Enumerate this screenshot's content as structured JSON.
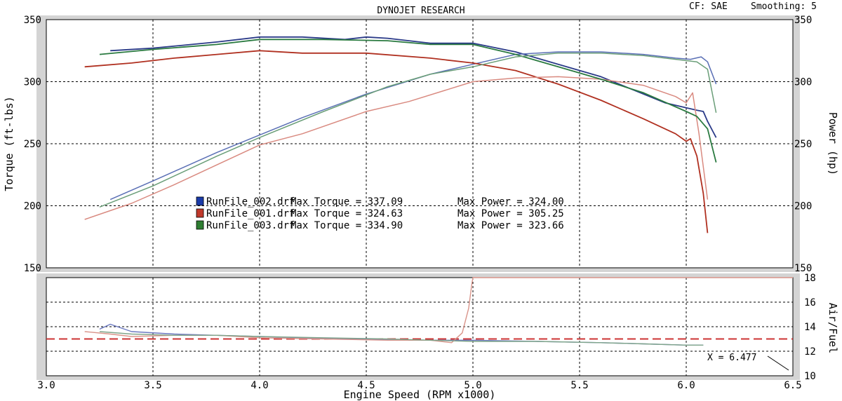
{
  "header": {
    "title": "DYNOJET RESEARCH",
    "cf_label": "CF: SAE",
    "smoothing_label": "Smoothing: 5"
  },
  "colors": {
    "frame_bg": "#d4d4d4",
    "plot_bg": "#ffffff",
    "grid": "#000000",
    "afr_ref": "#cc3333"
  },
  "chart_data": [
    {
      "type": "line",
      "xlabel": "Engine Speed (RPM x1000)",
      "ylabel": "Torque (ft-lbs)",
      "y2label": "Power (hp)",
      "xlim": [
        3.0,
        6.5
      ],
      "ylim": [
        150,
        350
      ],
      "y2lim": [
        150,
        350
      ],
      "xticks": [
        "3.0",
        "3.5",
        "4.0",
        "4.5",
        "5.0",
        "5.5",
        "6.0",
        "6.5"
      ],
      "yticks": [
        "150",
        "200",
        "250",
        "300",
        "350"
      ],
      "y2ticks": [
        "150",
        "200",
        "250",
        "300",
        "350"
      ],
      "grid": true,
      "legend": [
        {
          "run": "RunFile_002.drf",
          "max_torque_label": "Max Torque = 337.09",
          "max_power_label": "Max Power = 324.00",
          "color": "#1a3aa8"
        },
        {
          "run": "RunFile_001.drf",
          "max_torque_label": "Max Torque = 324.63",
          "max_power_label": "Max Power = 305.25",
          "color": "#c0392b"
        },
        {
          "run": "RunFile_003.drf",
          "max_torque_label": "Max Torque = 334.90",
          "max_power_label": "Max Power = 323.66",
          "color": "#2e7d32"
        }
      ],
      "series": [
        {
          "run": "RunFile_002.drf",
          "measure": "torque",
          "color": "#2a3a88",
          "x": [
            3.3,
            3.5,
            3.8,
            4.0,
            4.2,
            4.4,
            4.5,
            4.6,
            4.8,
            5.0,
            5.2,
            5.4,
            5.6,
            5.8,
            5.9,
            6.0,
            6.05,
            6.08,
            6.1,
            6.14
          ],
          "values": [
            325,
            327,
            332,
            336,
            336,
            334,
            336,
            335,
            331,
            331,
            324,
            314,
            304,
            290,
            283,
            279,
            277,
            276,
            268,
            255
          ]
        },
        {
          "run": "RunFile_002.drf",
          "measure": "power",
          "color": "#5a6fb5",
          "x": [
            3.3,
            3.5,
            3.8,
            4.0,
            4.2,
            4.5,
            4.8,
            5.0,
            5.2,
            5.4,
            5.6,
            5.8,
            5.95,
            6.02,
            6.07,
            6.1,
            6.14
          ],
          "values": [
            205,
            220,
            243,
            257,
            271,
            290,
            306,
            314,
            322,
            324,
            324,
            322,
            319,
            318,
            320,
            316,
            298
          ]
        },
        {
          "run": "RunFile_001.drf",
          "measure": "torque",
          "color": "#b03020",
          "x": [
            3.18,
            3.4,
            3.6,
            3.8,
            4.0,
            4.2,
            4.5,
            4.8,
            5.0,
            5.2,
            5.4,
            5.6,
            5.8,
            5.95,
            6.0,
            6.02,
            6.05,
            6.08,
            6.1
          ],
          "values": [
            312,
            315,
            319,
            322,
            325,
            323,
            323,
            319,
            315,
            309,
            298,
            285,
            270,
            258,
            252,
            254,
            240,
            210,
            178
          ]
        },
        {
          "run": "RunFile_001.drf",
          "measure": "power",
          "color": "#d98a80",
          "x": [
            3.18,
            3.4,
            3.6,
            3.8,
            4.0,
            4.2,
            4.5,
            4.7,
            5.0,
            5.2,
            5.4,
            5.6,
            5.8,
            5.95,
            6.0,
            6.03,
            6.06,
            6.1
          ],
          "values": [
            189,
            202,
            217,
            233,
            249,
            258,
            276,
            284,
            300,
            303,
            304,
            302,
            297,
            288,
            283,
            291,
            258,
            205
          ]
        },
        {
          "run": "RunFile_003.drf",
          "measure": "torque",
          "color": "#2a7a40",
          "x": [
            3.25,
            3.5,
            3.8,
            4.0,
            4.3,
            4.6,
            4.8,
            5.0,
            5.2,
            5.4,
            5.6,
            5.8,
            6.0,
            6.05,
            6.1,
            6.14
          ],
          "values": [
            322,
            326,
            330,
            334,
            334,
            333,
            330,
            330,
            322,
            312,
            302,
            291,
            276,
            272,
            262,
            235
          ]
        },
        {
          "run": "RunFile_003.drf",
          "measure": "power",
          "color": "#6a9e78",
          "x": [
            3.25,
            3.5,
            3.8,
            4.0,
            4.3,
            4.6,
            4.8,
            5.0,
            5.2,
            5.4,
            5.6,
            5.8,
            5.95,
            6.05,
            6.1,
            6.14
          ],
          "values": [
            199,
            216,
            240,
            255,
            276,
            296,
            306,
            312,
            320,
            323,
            323,
            321,
            318,
            316,
            310,
            275
          ]
        }
      ]
    },
    {
      "type": "line",
      "ylabel": "Air/Fuel",
      "xlim": [
        3.0,
        6.5
      ],
      "ylim": [
        10,
        18
      ],
      "yticks": [
        "10",
        "12",
        "14",
        "16",
        "18"
      ],
      "grid": true,
      "reference_line": 13.0,
      "cursor_label": "X = 6.477",
      "series": [
        {
          "run": "RunFile_002.drf",
          "color": "#6a78c0",
          "x": [
            3.25,
            3.3,
            3.4,
            3.6,
            3.8,
            4.0,
            4.2,
            4.5,
            4.8,
            5.0,
            5.3,
            5.6,
            5.8,
            6.0,
            6.08
          ],
          "values": [
            13.8,
            14.2,
            13.6,
            13.4,
            13.3,
            13.2,
            13.1,
            13.0,
            12.9,
            12.9,
            12.8,
            12.7,
            12.6,
            12.5,
            12.5
          ]
        },
        {
          "run": "RunFile_001.drf",
          "color": "#d9948a",
          "x": [
            3.18,
            3.3,
            3.4,
            3.6,
            3.8,
            4.0,
            4.3,
            4.6,
            4.8,
            4.9,
            4.95,
            4.98,
            4.995,
            5.0,
            6.5
          ],
          "values": [
            13.6,
            13.4,
            13.2,
            13.3,
            13.3,
            13.1,
            13.0,
            12.9,
            12.9,
            12.7,
            13.5,
            15.5,
            17.5,
            18.0,
            18.0
          ]
        },
        {
          "run": "RunFile_003.drf",
          "color": "#7fa58a",
          "x": [
            3.25,
            3.4,
            3.6,
            3.8,
            4.0,
            4.3,
            4.6,
            4.8,
            5.0,
            5.3,
            5.6,
            5.8,
            6.0,
            6.08
          ],
          "values": [
            13.6,
            13.4,
            13.3,
            13.3,
            13.2,
            13.1,
            13.0,
            12.9,
            12.8,
            12.8,
            12.7,
            12.6,
            12.5,
            12.5
          ]
        }
      ]
    }
  ]
}
